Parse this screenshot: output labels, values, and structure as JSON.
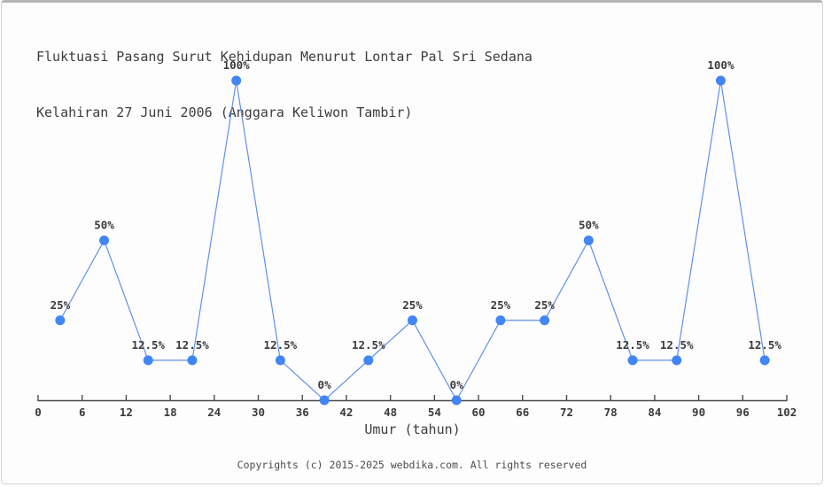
{
  "page": {
    "footer": "Copyrights (c) 2015-2025 webdika.com. All rights reserved"
  },
  "chart_data": {
    "type": "line",
    "title": "Fluktuasi Pasang Surut Kehidupan Menurut Lontar Pal Sri Sedana Kelahiran 27 Juni 2006 (Anggara Keliwon Tambir)",
    "title_lines": {
      "line1": "Fluktuasi Pasang Surut Kehidupan Menurut Lontar Pal Sri Sedana",
      "line2": "Kelahiran 27 Juni 2006 (Anggara Keliwon Tambir)"
    },
    "xlabel": "Umur (tahun)",
    "ylabel": "",
    "x": [
      3,
      9,
      15,
      21,
      27,
      33,
      39,
      45,
      51,
      57,
      63,
      69,
      75,
      81,
      87,
      93,
      99
    ],
    "values": [
      25,
      50,
      12.5,
      12.5,
      100,
      12.5,
      0,
      12.5,
      25,
      0,
      25,
      25,
      50,
      12.5,
      12.5,
      100,
      12.5
    ],
    "point_labels": [
      "25%",
      "50%",
      "12.5%",
      "12.5%",
      "100%",
      "12.5%",
      "0%",
      "12.5%",
      "25%",
      "0%",
      "25%",
      "25%",
      "50%",
      "12.5%",
      "12.5%",
      "100%",
      "12.5%"
    ],
    "x_ticks": [
      0,
      6,
      12,
      18,
      24,
      30,
      36,
      42,
      48,
      54,
      60,
      66,
      72,
      78,
      84,
      90,
      96,
      102
    ],
    "xlim": [
      0,
      102
    ],
    "ylim": [
      0,
      100
    ],
    "grid": false,
    "legend": false,
    "colors": {
      "marker": "#4285f4",
      "line": "#6191e6",
      "axis": "#4a4a4a",
      "tick_label": "#3a3a3a",
      "point_label": "#3a3a3a"
    }
  }
}
